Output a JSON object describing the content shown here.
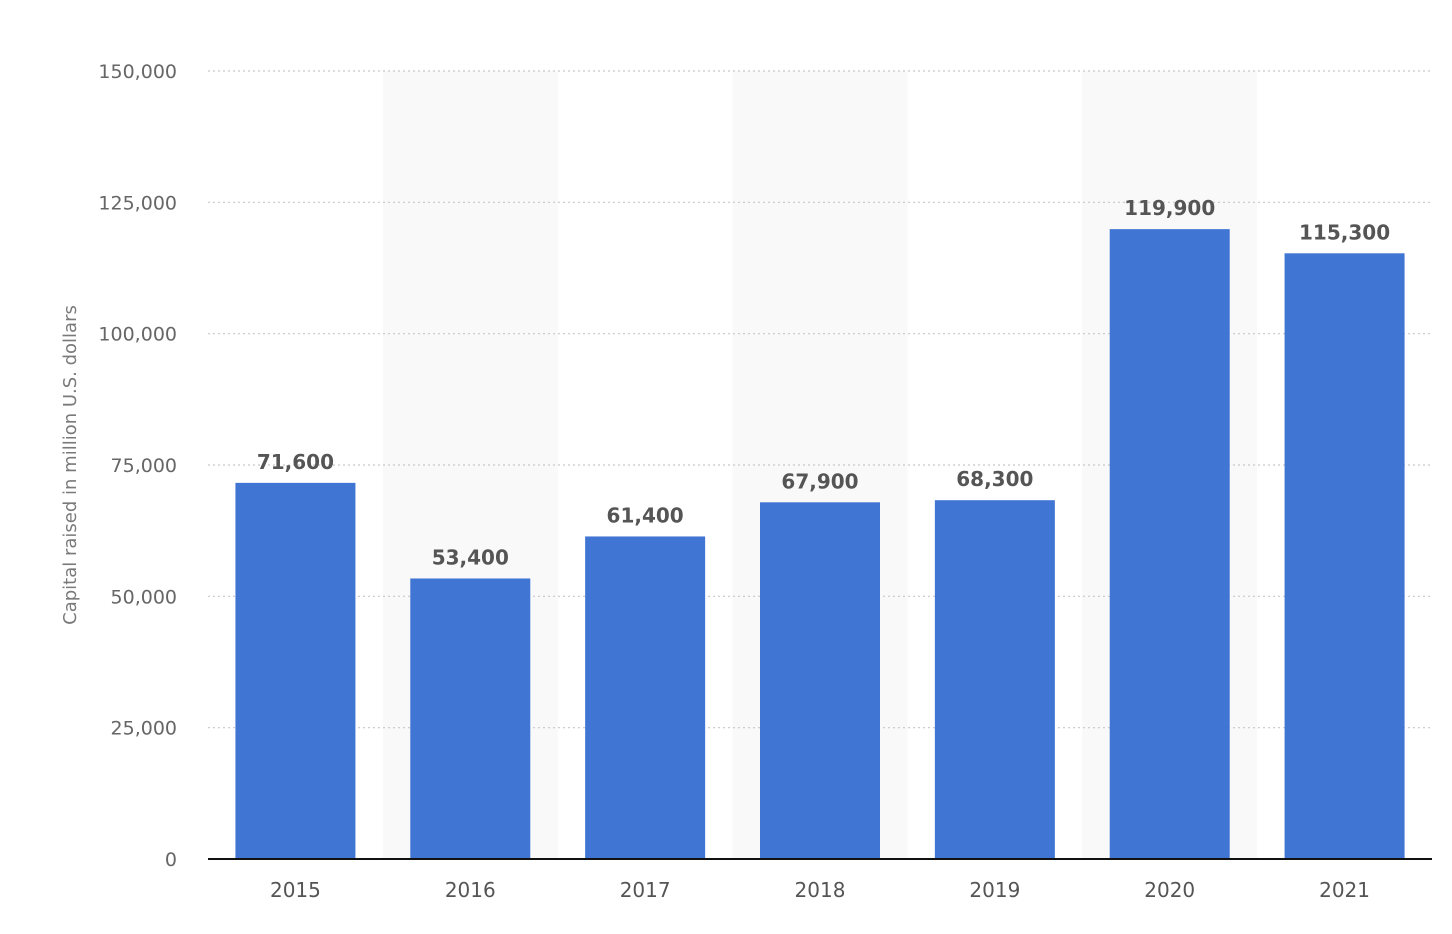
{
  "chart_data": {
    "type": "bar",
    "title": "",
    "xlabel": "",
    "ylabel": "Capital raised in million U.S. dollars",
    "categories": [
      "2015",
      "2016",
      "2017",
      "2018",
      "2019",
      "2020",
      "2021"
    ],
    "values": [
      71600,
      53400,
      61400,
      67900,
      68300,
      119900,
      115300
    ],
    "value_labels": [
      "71,600",
      "53,400",
      "61,400",
      "67,900",
      "68,300",
      "119,900",
      "115,300"
    ],
    "ylim": [
      0,
      150000
    ],
    "yticks": [
      0,
      25000,
      50000,
      75000,
      100000,
      125000,
      150000
    ],
    "ytick_labels": [
      "0",
      "25,000",
      "50,000",
      "75,000",
      "100,000",
      "125,000",
      "150,000"
    ],
    "grid": true,
    "alternating_column_shading": true,
    "colors": {
      "bar": "#4175d4",
      "grid": "#c8c8c8",
      "axis": "#111111",
      "band": "#f9f9f9"
    }
  }
}
